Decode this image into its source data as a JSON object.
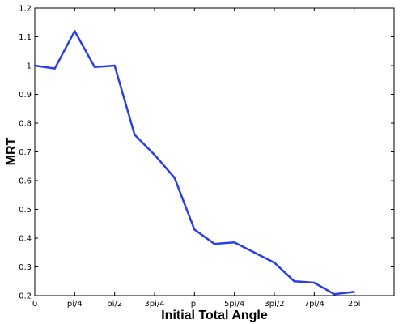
{
  "chart_data": {
    "type": "line",
    "title": "",
    "xlabel": "Initial Total Angle",
    "ylabel": "MRT",
    "xlim": [
      0,
      7.0686
    ],
    "ylim": [
      0.2,
      1.2
    ],
    "x_ticks": [
      {
        "value": 0,
        "label": "0"
      },
      {
        "value": 0.7854,
        "label": "pi/4"
      },
      {
        "value": 1.5708,
        "label": "pi/2"
      },
      {
        "value": 2.3562,
        "label": "3pi/4"
      },
      {
        "value": 3.1416,
        "label": "pi"
      },
      {
        "value": 3.927,
        "label": "5pi/4"
      },
      {
        "value": 4.7124,
        "label": "3pi/2"
      },
      {
        "value": 5.4978,
        "label": "7pi/4"
      },
      {
        "value": 6.2832,
        "label": "2pi"
      }
    ],
    "y_ticks": [
      {
        "value": 0.2,
        "label": "0.2"
      },
      {
        "value": 0.3,
        "label": "0.3"
      },
      {
        "value": 0.4,
        "label": "0.4"
      },
      {
        "value": 0.5,
        "label": "0.5"
      },
      {
        "value": 0.6,
        "label": "0.6"
      },
      {
        "value": 0.7,
        "label": "0.7"
      },
      {
        "value": 0.8,
        "label": "0.8"
      },
      {
        "value": 0.9,
        "label": "0.9"
      },
      {
        "value": 1.0,
        "label": "1"
      },
      {
        "value": 1.1,
        "label": "1.1"
      },
      {
        "value": 1.2,
        "label": "1.2"
      }
    ],
    "grid": false,
    "legend": "none",
    "series": [
      {
        "color": "#2a3ee8",
        "x": [
          0,
          0.3927,
          0.7854,
          1.1781,
          1.5708,
          1.9635,
          2.3562,
          2.7489,
          3.1416,
          3.5343,
          3.927,
          4.3197,
          4.7124,
          5.1051,
          5.4978,
          5.8905,
          6.2832
        ],
        "y": [
          1.0,
          0.99,
          1.12,
          0.995,
          1.0,
          0.76,
          0.69,
          0.61,
          0.43,
          0.38,
          0.385,
          0.35,
          0.315,
          0.25,
          0.245,
          0.205,
          0.213
        ]
      }
    ]
  }
}
